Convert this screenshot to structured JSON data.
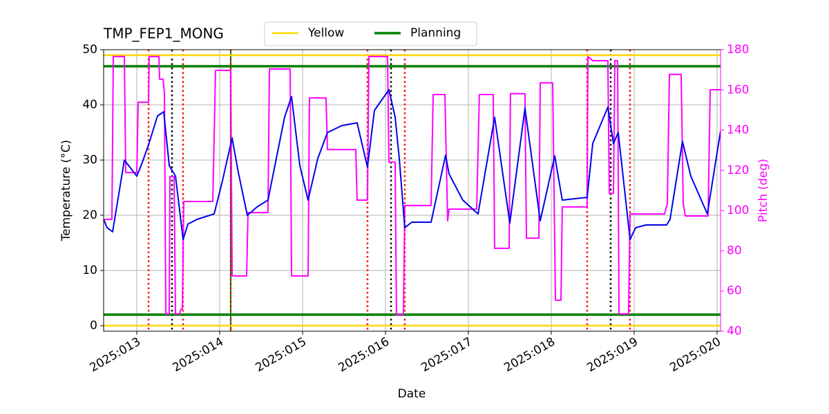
{
  "chart_data": {
    "type": "line",
    "title": "TMP_FEP1_MONG",
    "xlabel": "Date",
    "ylabel": "Temperature (°C)",
    "y2label": "Pitch (deg)",
    "y2color": "#ff00ff",
    "grid": true,
    "xlim": [
      12.6,
      20.042
    ],
    "xticks": [
      {
        "value": 13,
        "label": "2025:013"
      },
      {
        "value": 14,
        "label": "2025:014"
      },
      {
        "value": 15,
        "label": "2025:015"
      },
      {
        "value": 16,
        "label": "2025:016"
      },
      {
        "value": 17,
        "label": "2025:017"
      },
      {
        "value": 18,
        "label": "2025:018"
      },
      {
        "value": 19,
        "label": "2025:019"
      },
      {
        "value": 20,
        "label": "2025:020"
      }
    ],
    "ylim": [
      -1,
      50
    ],
    "yticks": [
      0,
      10,
      20,
      30,
      40,
      50
    ],
    "y2lim": [
      40,
      180
    ],
    "y2ticks": [
      40,
      60,
      80,
      100,
      120,
      140,
      160,
      180
    ],
    "series": [
      {
        "color": "#0000ee",
        "x": [
          12.6,
          12.642,
          12.708,
          12.85,
          13.0,
          13.058,
          13.142,
          13.25,
          13.325,
          13.392,
          13.467,
          13.517,
          13.558,
          13.617,
          13.725,
          13.933,
          14.033,
          14.15,
          14.225,
          14.333,
          14.45,
          14.583,
          14.683,
          14.783,
          14.867,
          14.967,
          15.067,
          15.183,
          15.3,
          15.475,
          15.658,
          15.783,
          15.867,
          16.042,
          16.117,
          16.167,
          16.233,
          16.317,
          16.55,
          16.725,
          16.767,
          16.933,
          17.117,
          17.317,
          17.5,
          17.683,
          17.867,
          18.042,
          18.133,
          18.433,
          18.5,
          18.683,
          18.75,
          18.808,
          18.95,
          19.017,
          19.142,
          19.392,
          19.433,
          19.583,
          19.683,
          19.883,
          20.042
        ],
        "values": [
          19.25,
          17.75,
          17.0,
          30.0,
          27.1,
          29.25,
          32.75,
          38.0,
          38.75,
          29.0,
          27.1,
          20.9,
          15.6,
          18.4,
          19.25,
          20.25,
          26.25,
          34.0,
          27.75,
          20.0,
          21.5,
          22.75,
          30.25,
          37.75,
          41.5,
          29.0,
          22.75,
          30.25,
          35.0,
          36.25,
          36.75,
          28.75,
          39.0,
          42.75,
          37.75,
          30.25,
          17.75,
          18.75,
          18.75,
          30.9,
          27.5,
          22.75,
          20.25,
          37.75,
          18.6,
          39.4,
          19.0,
          30.75,
          22.75,
          23.25,
          33.0,
          39.6,
          33.0,
          35.0,
          15.6,
          17.75,
          18.25,
          18.25,
          19.25,
          33.4,
          27.1,
          20.25,
          35.25
        ]
      },
      {
        "color": "#ff00ff",
        "axis": "y2",
        "x": [
          12.6,
          12.7,
          12.717,
          12.85,
          12.867,
          13.0,
          13.017,
          13.142,
          13.15,
          13.267,
          13.275,
          13.317,
          13.333,
          13.35,
          13.392,
          13.4,
          13.45,
          13.467,
          13.517,
          13.533,
          13.55,
          13.567,
          13.917,
          13.95,
          14.133,
          14.15,
          14.325,
          14.342,
          14.583,
          14.6,
          14.85,
          14.867,
          15.067,
          15.083,
          15.283,
          15.3,
          15.642,
          15.658,
          15.783,
          15.8,
          16.025,
          16.042,
          16.117,
          16.133,
          16.217,
          16.233,
          16.55,
          16.575,
          16.717,
          16.75,
          16.767,
          17.1,
          17.133,
          17.3,
          17.317,
          17.492,
          17.508,
          17.683,
          17.7,
          17.85,
          17.867,
          18.017,
          18.05,
          18.117,
          18.133,
          18.433,
          18.442,
          18.5,
          18.683,
          18.7,
          18.75,
          18.767,
          18.8,
          18.817,
          18.933,
          18.95,
          19.367,
          19.4,
          19.425,
          19.567,
          19.592,
          19.617,
          19.892,
          19.917,
          20.042
        ],
        "values": [
          95.6,
          95.6,
          176.6,
          176.6,
          118.9,
          118.9,
          153.9,
          153.9,
          176.6,
          176.6,
          165.3,
          165.3,
          158.4,
          48.6,
          48.6,
          116.9,
          116.9,
          48.6,
          48.6,
          51.0,
          51.0,
          104.5,
          104.5,
          169.7,
          169.7,
          67.5,
          67.5,
          99.0,
          99.0,
          170.4,
          170.4,
          67.5,
          67.5,
          156.0,
          156.0,
          130.3,
          130.3,
          105.2,
          105.2,
          176.6,
          176.6,
          124.1,
          124.1,
          48.2,
          48.2,
          102.5,
          102.5,
          157.7,
          157.7,
          94.9,
          100.7,
          100.7,
          157.7,
          157.7,
          81.2,
          81.2,
          158.1,
          158.1,
          86.3,
          86.3,
          163.5,
          163.5,
          55.4,
          55.4,
          101.8,
          101.8,
          176.6,
          174.5,
          174.5,
          108.6,
          108.6,
          174.5,
          174.5,
          48.6,
          48.6,
          98.3,
          98.3,
          103.5,
          167.7,
          167.7,
          103.5,
          97.3,
          97.3,
          160.1,
          160.1
        ]
      }
    ],
    "limit_lines": [
      {
        "name": "Yellow",
        "color": "#ffd700",
        "values": [
          0,
          49
        ]
      },
      {
        "name": "Planning",
        "color": "#008000",
        "values": [
          2,
          47
        ]
      }
    ],
    "vlines": [
      {
        "color": "#008000",
        "style": "solid",
        "x": [
          14.133
        ]
      },
      {
        "color": "#ff0000",
        "style": "dotted",
        "x": [
          13.142,
          13.558,
          14.133,
          15.783,
          16.233,
          18.433,
          18.95
        ]
      },
      {
        "color": "#000000",
        "style": "dotted",
        "x": [
          13.425,
          16.067,
          18.717
        ]
      }
    ]
  }
}
